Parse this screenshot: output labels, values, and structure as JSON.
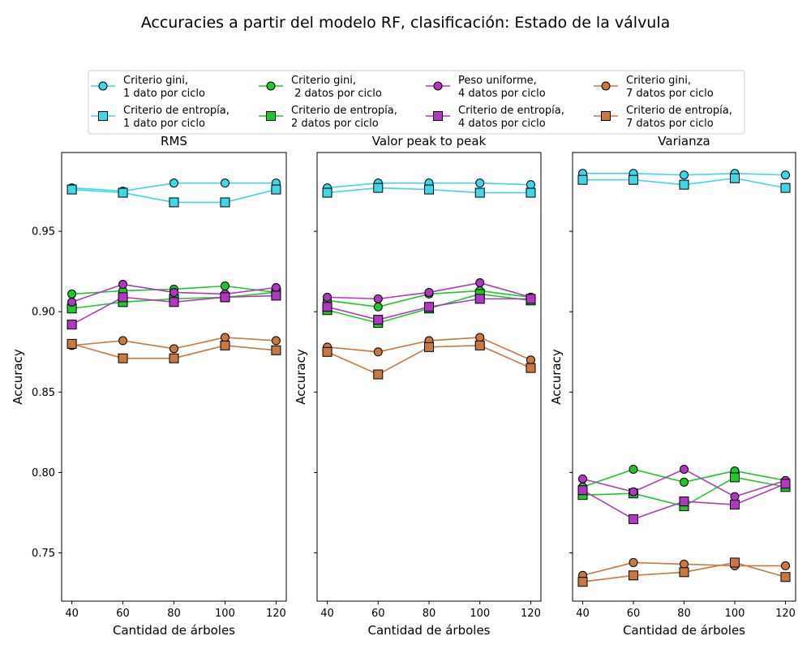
{
  "title": "Accuracies a partir del modelo RF, clasificación: Estado de la válvula",
  "legend": {
    "placement": "top-center",
    "entries": [
      {
        "series": 0,
        "line1": "Criterio gini,",
        "line2": "1 dato por ciclo"
      },
      {
        "series": 1,
        "line1": "Criterio de entropía,",
        "line2": "1 dato por ciclo"
      },
      {
        "series": 2,
        "line1": "Criterio gini,",
        "line2": " 2 datos por ciclo"
      },
      {
        "series": 3,
        "line1": "Criterio de entropía,",
        "line2": "2 datos por ciclo"
      },
      {
        "series": 4,
        "line1": "Peso uniforme,",
        "line2": "4 datos por ciclo"
      },
      {
        "series": 5,
        "line1": "Criterio de entropía,",
        "line2": "4 datos por ciclo"
      },
      {
        "series": 6,
        "line1": "Criterio gini,",
        "line2": "7 datos por ciclo"
      },
      {
        "series": 7,
        "line1": "Criterio de entropía,",
        "line2": "7 datos por ciclo"
      }
    ]
  },
  "chart_data": [
    {
      "type": "line",
      "title": "RMS",
      "xlabel": "Cantidad de árboles",
      "ylabel": "Accuracy",
      "x": [
        40,
        60,
        80,
        100,
        120
      ],
      "xticks": [
        "40",
        "60",
        "80",
        "100",
        "120"
      ],
      "ylim": [
        0.72,
        0.999
      ],
      "yticks": [
        "0.75",
        "0.80",
        "0.85",
        "0.90",
        "0.95"
      ],
      "ytick_values": [
        0.75,
        0.8,
        0.85,
        0.9,
        0.95
      ],
      "series": [
        {
          "color": "#3fd6e8",
          "marker": "circle",
          "values": [
            0.977,
            0.975,
            0.98,
            0.98,
            0.98
          ]
        },
        {
          "color": "#3fd6e8",
          "marker": "square",
          "values": [
            0.976,
            0.974,
            0.968,
            0.968,
            0.976
          ]
        },
        {
          "color": "#1ec828",
          "marker": "circle",
          "values": [
            0.911,
            0.913,
            0.914,
            0.916,
            0.912
          ]
        },
        {
          "color": "#1ec828",
          "marker": "square",
          "values": [
            0.902,
            0.906,
            0.908,
            0.909,
            0.912
          ]
        },
        {
          "color": "#b038c0",
          "marker": "circle",
          "values": [
            0.906,
            0.917,
            0.912,
            0.911,
            0.915
          ]
        },
        {
          "color": "#b038c0",
          "marker": "square",
          "values": [
            0.892,
            0.909,
            0.906,
            0.909,
            0.91
          ]
        },
        {
          "color": "#c87840",
          "marker": "circle",
          "values": [
            0.879,
            0.882,
            0.877,
            0.884,
            0.882
          ]
        },
        {
          "color": "#c87840",
          "marker": "square",
          "values": [
            0.88,
            0.871,
            0.871,
            0.879,
            0.876
          ]
        }
      ]
    },
    {
      "type": "line",
      "title": "Valor peak to peak",
      "xlabel": "Cantidad de árboles",
      "ylabel": "Accuracy",
      "x": [
        40,
        60,
        80,
        100,
        120
      ],
      "xticks": [
        "40",
        "60",
        "80",
        "100",
        "120"
      ],
      "ylim": [
        0.72,
        0.999
      ],
      "series": [
        {
          "color": "#3fd6e8",
          "marker": "circle",
          "values": [
            0.977,
            0.98,
            0.98,
            0.98,
            0.979
          ]
        },
        {
          "color": "#3fd6e8",
          "marker": "square",
          "values": [
            0.974,
            0.977,
            0.976,
            0.974,
            0.974
          ]
        },
        {
          "color": "#1ec828",
          "marker": "circle",
          "values": [
            0.907,
            0.903,
            0.911,
            0.913,
            0.909
          ]
        },
        {
          "color": "#1ec828",
          "marker": "square",
          "values": [
            0.901,
            0.893,
            0.902,
            0.911,
            0.907
          ]
        },
        {
          "color": "#b038c0",
          "marker": "circle",
          "values": [
            0.909,
            0.908,
            0.912,
            0.918,
            0.909
          ]
        },
        {
          "color": "#b038c0",
          "marker": "square",
          "values": [
            0.903,
            0.895,
            0.903,
            0.908,
            0.908
          ]
        },
        {
          "color": "#c87840",
          "marker": "circle",
          "values": [
            0.878,
            0.875,
            0.882,
            0.884,
            0.87
          ]
        },
        {
          "color": "#c87840",
          "marker": "square",
          "values": [
            0.875,
            0.861,
            0.878,
            0.879,
            0.865
          ]
        }
      ]
    },
    {
      "type": "line",
      "title": "Varianza",
      "xlabel": "Cantidad de árboles",
      "ylabel": "Accuracy",
      "x": [
        40,
        60,
        80,
        100,
        120
      ],
      "xticks": [
        "40",
        "60",
        "80",
        "100",
        "120"
      ],
      "ylim": [
        0.72,
        0.999
      ],
      "series": [
        {
          "color": "#3fd6e8",
          "marker": "circle",
          "values": [
            0.986,
            0.986,
            0.985,
            0.986,
            0.985
          ]
        },
        {
          "color": "#3fd6e8",
          "marker": "square",
          "values": [
            0.982,
            0.982,
            0.979,
            0.983,
            0.977
          ]
        },
        {
          "color": "#1ec828",
          "marker": "circle",
          "values": [
            0.791,
            0.802,
            0.794,
            0.801,
            0.795
          ]
        },
        {
          "color": "#1ec828",
          "marker": "square",
          "values": [
            0.786,
            0.787,
            0.779,
            0.797,
            0.791
          ]
        },
        {
          "color": "#b038c0",
          "marker": "circle",
          "values": [
            0.796,
            0.788,
            0.802,
            0.785,
            0.795
          ]
        },
        {
          "color": "#b038c0",
          "marker": "square",
          "values": [
            0.789,
            0.771,
            0.782,
            0.78,
            0.793
          ]
        },
        {
          "color": "#c87840",
          "marker": "circle",
          "values": [
            0.736,
            0.744,
            0.743,
            0.742,
            0.742
          ]
        },
        {
          "color": "#c87840",
          "marker": "square",
          "values": [
            0.732,
            0.736,
            0.738,
            0.744,
            0.735
          ]
        }
      ]
    }
  ]
}
